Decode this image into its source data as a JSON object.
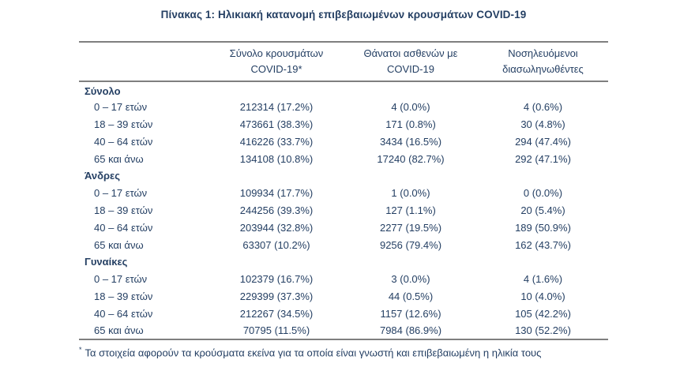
{
  "title": "Πίνακας 1: Ηλικιακή κατανομή επιβεβαιωμένων κρουσμάτων COVID-19",
  "colors": {
    "text": "#243f63",
    "border": "#7f7f7f"
  },
  "table": {
    "headers": {
      "cases": "Σύνολο κρουσμάτων COVID-19*",
      "deaths": "Θάνατοι ασθενών με COVID-19",
      "intubated": "Νοσηλευόμενοι διασωληνωθέντες"
    },
    "sections": [
      {
        "label": "Σύνολο",
        "rows": [
          {
            "label": "0 – 17 ετών",
            "cases": "212314 (17.2%)",
            "deaths": "4 (0.0%)",
            "intubated": "4 (0.6%)"
          },
          {
            "label": "18 – 39 ετών",
            "cases": "473661 (38.3%)",
            "deaths": "171 (0.8%)",
            "intubated": "30 (4.8%)"
          },
          {
            "label": "40 – 64 ετών",
            "cases": "416226 (33.7%)",
            "deaths": "3434 (16.5%)",
            "intubated": "294 (47.4%)"
          },
          {
            "label": "65 και άνω",
            "cases": "134108 (10.8%)",
            "deaths": "17240 (82.7%)",
            "intubated": "292 (47.1%)"
          }
        ]
      },
      {
        "label": "Άνδρες",
        "rows": [
          {
            "label": "0 – 17 ετών",
            "cases": "109934 (17.7%)",
            "deaths": "1 (0.0%)",
            "intubated": "0 (0.0%)"
          },
          {
            "label": "18 – 39 ετών",
            "cases": "244256 (39.3%)",
            "deaths": "127 (1.1%)",
            "intubated": "20 (5.4%)"
          },
          {
            "label": "40 – 64 ετών",
            "cases": "203944 (32.8%)",
            "deaths": "2277 (19.5%)",
            "intubated": "189 (50.9%)"
          },
          {
            "label": "65 και άνω",
            "cases": "63307 (10.2%)",
            "deaths": "9256 (79.4%)",
            "intubated": "162 (43.7%)"
          }
        ]
      },
      {
        "label": "Γυναίκες",
        "rows": [
          {
            "label": "0 – 17 ετών",
            "cases": "102379 (16.7%)",
            "deaths": "3 (0.0%)",
            "intubated": "4 (1.6%)"
          },
          {
            "label": "18 – 39 ετών",
            "cases": "229399 (37.3%)",
            "deaths": "44 (0.5%)",
            "intubated": "10 (4.0%)"
          },
          {
            "label": "40 – 64 ετών",
            "cases": "212267 (34.5%)",
            "deaths": "1157 (12.6%)",
            "intubated": "105 (42.2%)"
          },
          {
            "label": "65 και άνω",
            "cases": "70795 (11.5%)",
            "deaths": "7984 (86.9%)",
            "intubated": "130 (52.2%)"
          }
        ]
      }
    ]
  },
  "footnote": {
    "marker": "*",
    "text": "Τα στοιχεία αφορούν τα κρούσματα εκείνα για τα οποία είναι γνωστή και επιβεβαιωμένη η ηλικία τους"
  }
}
